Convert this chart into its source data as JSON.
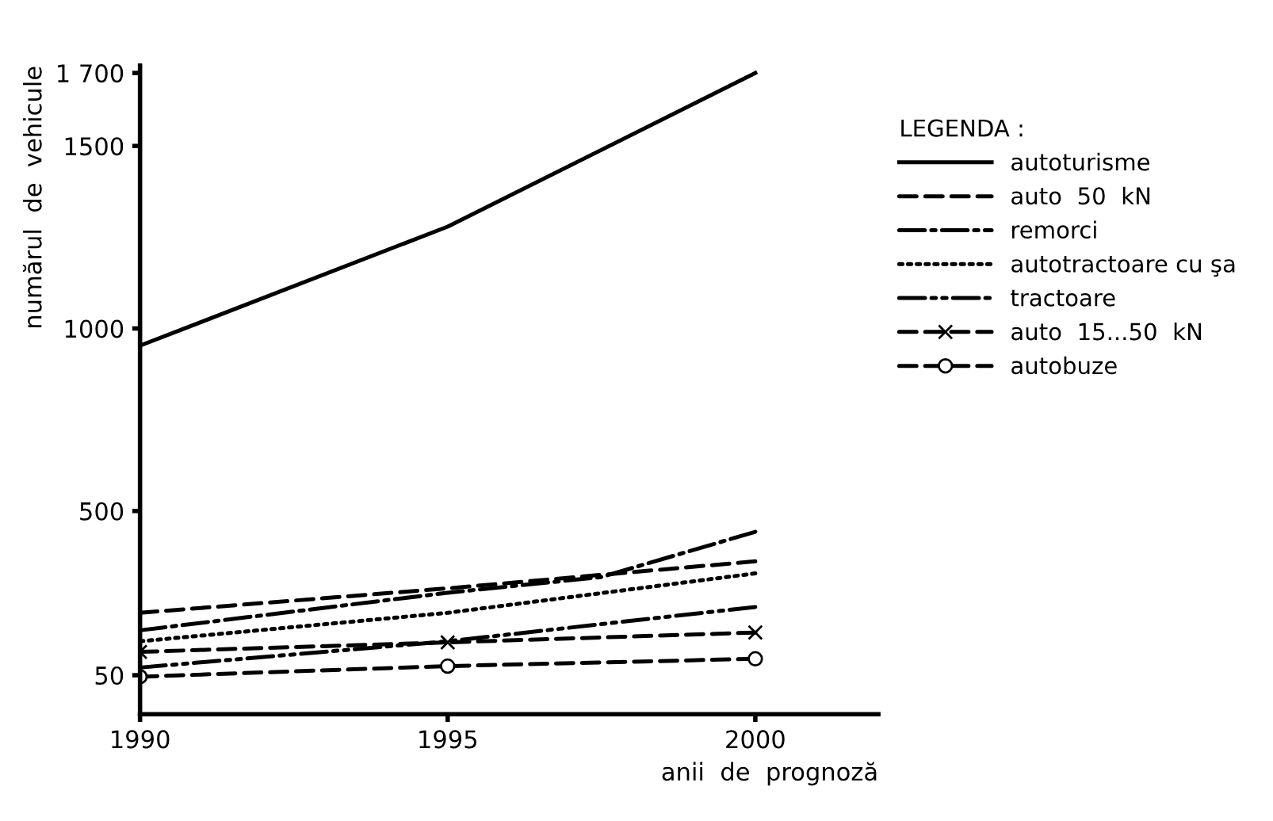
{
  "chart_data": {
    "type": "line",
    "xlabel": "anii  de  prognoză",
    "ylabel": "numărul  de  vehicule",
    "legend_title": "LEGENDA :",
    "legend": "top right",
    "grid": false,
    "xlim": [
      1990,
      2002
    ],
    "xticks": [
      1990,
      1995,
      2000
    ],
    "ylim": [
      -57,
      1720
    ],
    "yticks": [
      50,
      500,
      1000,
      1500,
      {
        "value": 1700,
        "label": "1 700"
      }
    ],
    "series": [
      {
        "name": "autoturisme",
        "color": "#000000",
        "line_style": "solid",
        "x": [
          1990,
          1995,
          2000
        ],
        "values": [
          953,
          1279,
          1700
        ]
      },
      {
        "name": "auto  50  kN",
        "color": "#000000",
        "line_style": "dashed",
        "x": [
          1990,
          1995,
          2000
        ],
        "values": [
          221,
          288,
          362
        ]
      },
      {
        "name": "remorci",
        "color": "#000000",
        "line_style": "dashdot",
        "x": [
          1990,
          1995,
          1997.5,
          2000
        ],
        "values": [
          173,
          276,
          319,
          443
        ]
      },
      {
        "name": "autotractoare cu şa",
        "color": "#000000",
        "line_style": "dotted",
        "x": [
          1990,
          1995,
          2000
        ],
        "values": [
          143,
          221,
          329
        ]
      },
      {
        "name": "tractoare",
        "color": "#000000",
        "line_style": "dashdotdot",
        "x": [
          1990,
          1995,
          2000
        ],
        "values": [
          71,
          143,
          237
        ]
      },
      {
        "name": "auto  15...50  kN",
        "color": "#000000",
        "line_style": "dashed",
        "marker": "cross",
        "x": [
          1990,
          1995,
          2000
        ],
        "values": [
          114,
          140,
          167
        ]
      },
      {
        "name": "autobuze",
        "color": "#000000",
        "line_style": "dashed",
        "marker": "circle",
        "x": [
          1990,
          1995,
          2000
        ],
        "values": [
          46,
          75,
          95
        ]
      }
    ]
  }
}
